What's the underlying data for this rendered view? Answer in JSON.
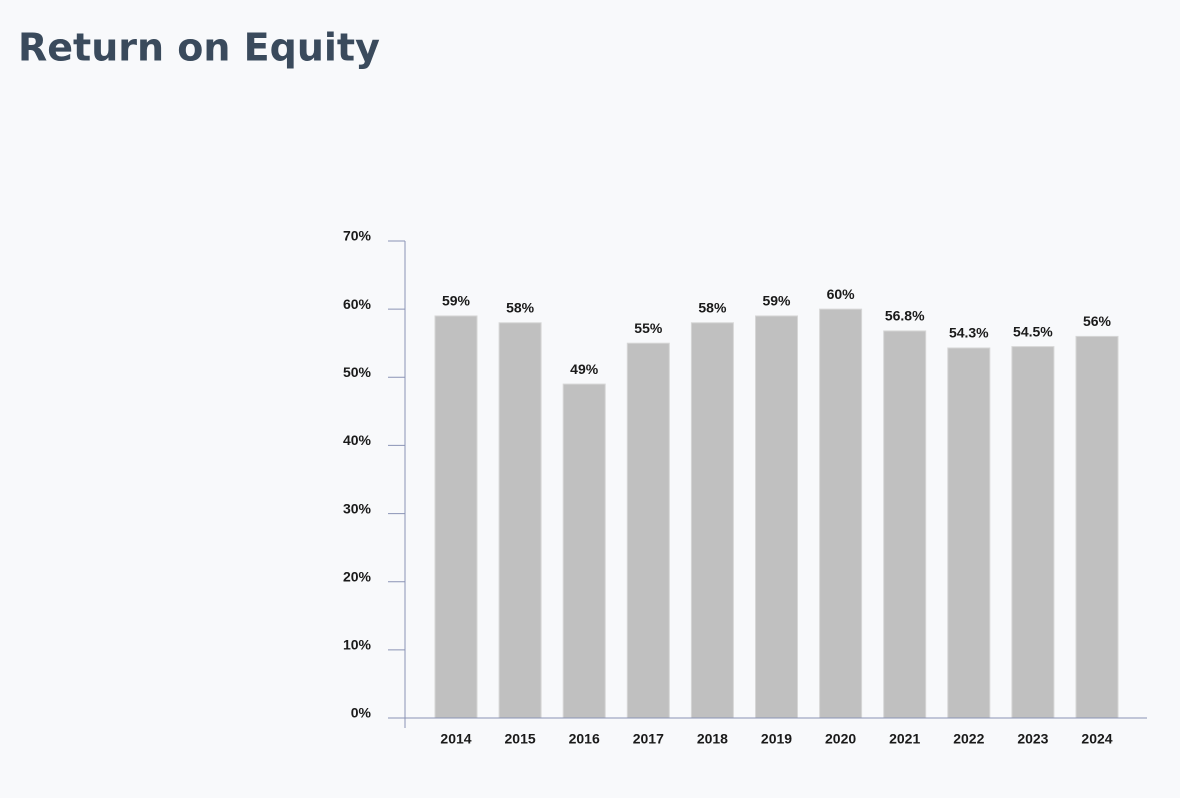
{
  "chart_data": {
    "type": "bar",
    "title": "Return on Equity",
    "categories": [
      "2014",
      "2015",
      "2016",
      "2017",
      "2018",
      "2019",
      "2020",
      "2021",
      "2022",
      "2023",
      "2024"
    ],
    "values": [
      59,
      58,
      49,
      55,
      58,
      59,
      60,
      56.8,
      54.3,
      54.5,
      56
    ],
    "value_labels": [
      "59%",
      "58%",
      "49%",
      "55%",
      "58%",
      "59%",
      "60%",
      "56.8%",
      "54.3%",
      "54.5%",
      "56%"
    ],
    "color": "#c0c0c0",
    "ylim": [
      0,
      70
    ],
    "yticks": [
      {
        "value": 0,
        "label": "0%"
      },
      {
        "value": 10,
        "label": "10%"
      },
      {
        "value": 20,
        "label": "20%"
      },
      {
        "value": 30,
        "label": "30%"
      },
      {
        "value": 40,
        "label": "40%"
      },
      {
        "value": 50,
        "label": "50%"
      },
      {
        "value": 60,
        "label": "60%"
      },
      {
        "value": 70,
        "label": "70%"
      }
    ],
    "grid": false
  }
}
